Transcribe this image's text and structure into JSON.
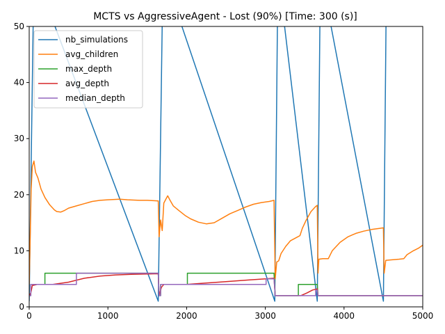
{
  "chart_data": {
    "type": "line",
    "title": "MCTS vs AggressiveAgent - Lost (90%) [Time: 300 (s)]",
    "xlabel": "",
    "ylabel": "",
    "xlim": [
      0,
      5000
    ],
    "ylim": [
      0,
      50
    ],
    "x_ticks": [
      "0",
      "1000",
      "2000",
      "3000",
      "4000",
      "5000"
    ],
    "y_ticks": [
      "0",
      "10",
      "20",
      "30",
      "40",
      "50"
    ],
    "grid": false,
    "legend_position": "upper-left",
    "series": [
      {
        "name": "nb_simulations",
        "color": "#1f77b4",
        "points": [
          [
            0,
            1
          ],
          [
            60,
            60
          ],
          [
            1640,
            1
          ],
          [
            1700,
            60
          ],
          [
            3120,
            1
          ],
          [
            3160,
            60
          ],
          [
            3660,
            1
          ],
          [
            3700,
            60
          ],
          [
            4500,
            1
          ],
          [
            4540,
            60
          ]
        ]
      },
      {
        "name": "avg_children",
        "color": "#ff7f0e",
        "points": [
          [
            0,
            4
          ],
          [
            15,
            14
          ],
          [
            25,
            21
          ],
          [
            40,
            25
          ],
          [
            60,
            26
          ],
          [
            80,
            24
          ],
          [
            110,
            23
          ],
          [
            150,
            21
          ],
          [
            200,
            19.5
          ],
          [
            260,
            18.2
          ],
          [
            320,
            17.3
          ],
          [
            350,
            17
          ],
          [
            400,
            16.9
          ],
          [
            450,
            17.2
          ],
          [
            500,
            17.6
          ],
          [
            600,
            18
          ],
          [
            700,
            18.4
          ],
          [
            800,
            18.8
          ],
          [
            900,
            19
          ],
          [
            1000,
            19.1
          ],
          [
            1150,
            19.2
          ],
          [
            1250,
            19.1
          ],
          [
            1400,
            19
          ],
          [
            1500,
            19
          ],
          [
            1640,
            18.9
          ],
          [
            1650,
            12.5
          ],
          [
            1670,
            15.5
          ],
          [
            1690,
            13.6
          ],
          [
            1710,
            18.5
          ],
          [
            1740,
            19.3
          ],
          [
            1760,
            19.8
          ],
          [
            1790,
            19
          ],
          [
            1830,
            18
          ],
          [
            1900,
            17.2
          ],
          [
            1980,
            16.3
          ],
          [
            2050,
            15.7
          ],
          [
            2150,
            15.1
          ],
          [
            2250,
            14.8
          ],
          [
            2350,
            15
          ],
          [
            2450,
            15.8
          ],
          [
            2550,
            16.6
          ],
          [
            2650,
            17.2
          ],
          [
            2750,
            17.8
          ],
          [
            2850,
            18.3
          ],
          [
            2950,
            18.6
          ],
          [
            3050,
            18.8
          ],
          [
            3110,
            19
          ],
          [
            3125,
            5
          ],
          [
            3145,
            8
          ],
          [
            3170,
            8.2
          ],
          [
            3200,
            9.5
          ],
          [
            3260,
            10.8
          ],
          [
            3320,
            11.8
          ],
          [
            3400,
            12.4
          ],
          [
            3440,
            12.7
          ],
          [
            3470,
            14
          ],
          [
            3520,
            15.5
          ],
          [
            3580,
            17
          ],
          [
            3640,
            17.9
          ],
          [
            3660,
            18.1
          ],
          [
            3670,
            6
          ],
          [
            3680,
            8.5
          ],
          [
            3730,
            8.6
          ],
          [
            3800,
            8.6
          ],
          [
            3850,
            10
          ],
          [
            3950,
            11.5
          ],
          [
            4050,
            12.5
          ],
          [
            4150,
            13.1
          ],
          [
            4250,
            13.5
          ],
          [
            4350,
            13.8
          ],
          [
            4450,
            14
          ],
          [
            4500,
            14.1
          ],
          [
            4510,
            6
          ],
          [
            4530,
            8.3
          ],
          [
            4700,
            8.5
          ],
          [
            4760,
            8.6
          ],
          [
            4800,
            9.3
          ],
          [
            4880,
            10
          ],
          [
            4950,
            10.5
          ],
          [
            5000,
            11
          ]
        ]
      },
      {
        "name": "max_depth",
        "color": "#2ca02c",
        "points": [
          [
            0,
            2
          ],
          [
            20,
            2
          ],
          [
            20,
            4
          ],
          [
            200,
            4
          ],
          [
            200,
            6
          ],
          [
            1640,
            6
          ],
          [
            1650,
            2
          ],
          [
            1670,
            2
          ],
          [
            1670,
            4
          ],
          [
            2010,
            4
          ],
          [
            2010,
            6
          ],
          [
            3110,
            6
          ],
          [
            3125,
            2
          ],
          [
            3420,
            2
          ],
          [
            3420,
            4
          ],
          [
            3660,
            4
          ],
          [
            3670,
            2
          ],
          [
            5000,
            2
          ]
        ]
      },
      {
        "name": "avg_depth",
        "color": "#d62728",
        "points": [
          [
            0,
            2
          ],
          [
            20,
            2.5
          ],
          [
            40,
            3.8
          ],
          [
            100,
            4
          ],
          [
            300,
            4
          ],
          [
            500,
            4.4
          ],
          [
            700,
            5.1
          ],
          [
            900,
            5.5
          ],
          [
            1100,
            5.7
          ],
          [
            1300,
            5.8
          ],
          [
            1500,
            5.85
          ],
          [
            1640,
            5.9
          ],
          [
            1650,
            2
          ],
          [
            1680,
            3.5
          ],
          [
            1710,
            4
          ],
          [
            2000,
            4
          ],
          [
            2200,
            4.2
          ],
          [
            2500,
            4.5
          ],
          [
            2800,
            4.8
          ],
          [
            3000,
            5
          ],
          [
            3110,
            5.1
          ],
          [
            3125,
            2
          ],
          [
            3400,
            2
          ],
          [
            3450,
            2
          ],
          [
            3530,
            2.5
          ],
          [
            3600,
            3
          ],
          [
            3660,
            3.2
          ],
          [
            3670,
            2
          ],
          [
            5000,
            2
          ]
        ]
      },
      {
        "name": "median_depth",
        "color": "#9467bd",
        "points": [
          [
            0,
            2
          ],
          [
            20,
            2
          ],
          [
            20,
            4
          ],
          [
            600,
            4
          ],
          [
            600,
            6
          ],
          [
            1640,
            6
          ],
          [
            1650,
            2
          ],
          [
            1670,
            2
          ],
          [
            1670,
            4
          ],
          [
            3010,
            4
          ],
          [
            3010,
            5
          ],
          [
            3110,
            5
          ],
          [
            3125,
            2
          ],
          [
            3640,
            2
          ],
          [
            3640,
            3
          ],
          [
            3660,
            3
          ],
          [
            3670,
            2
          ],
          [
            5000,
            2
          ]
        ]
      }
    ]
  }
}
